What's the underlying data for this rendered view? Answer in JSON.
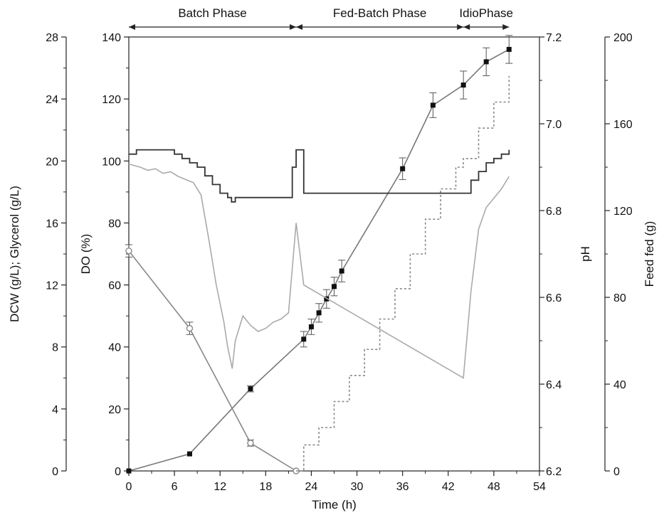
{
  "chart_data": {
    "type": "line",
    "xlabel": "Time (h)",
    "xlim": [
      0,
      54
    ],
    "xticks": [
      "0",
      "6",
      "12",
      "18",
      "24",
      "30",
      "36",
      "42",
      "48",
      "54"
    ],
    "grid": false,
    "axes": {
      "dcw": {
        "label": "DCW (g/L); Glycerol (g/L)",
        "lim": [
          0,
          28
        ],
        "ticks": [
          "0",
          "4",
          "8",
          "12",
          "16",
          "20",
          "24",
          "28"
        ]
      },
      "do": {
        "label": "DO (%)",
        "lim": [
          0,
          140
        ],
        "ticks": [
          "0",
          "20",
          "40",
          "60",
          "80",
          "100",
          "120",
          "140"
        ]
      },
      "ph": {
        "label": "pH",
        "lim": [
          6.2,
          7.2
        ],
        "ticks": [
          "6.2",
          "6.4",
          "6.6",
          "6.8",
          "7.0",
          "7.2"
        ]
      },
      "feed": {
        "label": "Feed fed (g)",
        "lim": [
          0,
          200
        ],
        "ticks": [
          "0",
          "40",
          "80",
          "120",
          "160",
          "200"
        ]
      }
    },
    "phases": [
      {
        "label": "Batch Phase",
        "start": 0,
        "end": 22
      },
      {
        "label": "Fed-Batch Phase",
        "start": 22,
        "end": 44
      },
      {
        "label": "IdioPhase",
        "start": 44,
        "end": 50
      }
    ],
    "series": [
      {
        "axis": "dcw",
        "style": "marker-filled-square",
        "color": "#777777",
        "marker": "#111111",
        "x": [
          0,
          8,
          16,
          23,
          24,
          25,
          26,
          27,
          28,
          36,
          40,
          44,
          47,
          50
        ],
        "y": [
          0,
          1.1,
          5.3,
          8.5,
          9.3,
          10.2,
          11.1,
          11.9,
          12.9,
          19.5,
          23.6,
          24.9,
          26.4,
          27.2
        ],
        "err": [
          0,
          0,
          0.2,
          0.5,
          0.5,
          0.6,
          0.6,
          0.6,
          0.7,
          0.7,
          0.8,
          0.9,
          0.9,
          0.9
        ]
      },
      {
        "axis": "dcw",
        "style": "marker-open-circle",
        "color": "#888888",
        "marker": "#888888",
        "x": [
          0,
          8,
          16,
          22
        ],
        "y": [
          14.2,
          9.2,
          1.8,
          0
        ],
        "err": [
          0.4,
          0.4,
          0.2,
          0
        ]
      },
      {
        "axis": "feed",
        "style": "dashed-step",
        "color": "#888888",
        "x": [
          22,
          23,
          25,
          27,
          29,
          31,
          33,
          35,
          37,
          39,
          41,
          43,
          44,
          46,
          48,
          50
        ],
        "y": [
          0,
          12,
          20,
          32,
          44,
          56,
          70,
          84,
          100,
          116,
          130,
          140,
          144,
          158,
          170,
          182
        ]
      },
      {
        "axis": "ph",
        "style": "step",
        "color": "#333333",
        "x": [
          0,
          1,
          5,
          6,
          7,
          8,
          9,
          10,
          11,
          12,
          13,
          13.5,
          14,
          15,
          16,
          17,
          18,
          19,
          20,
          21,
          21.5,
          22,
          23,
          44,
          45,
          46,
          47,
          48,
          49,
          50
        ],
        "y": [
          6.93,
          6.94,
          6.94,
          6.93,
          6.92,
          6.91,
          6.9,
          6.88,
          6.86,
          6.84,
          6.83,
          6.82,
          6.83,
          6.83,
          6.83,
          6.83,
          6.83,
          6.83,
          6.83,
          6.83,
          6.9,
          6.94,
          6.84,
          6.84,
          6.87,
          6.89,
          6.91,
          6.92,
          6.93,
          6.94
        ]
      },
      {
        "axis": "do",
        "style": "line",
        "color": "#aaaaaa",
        "x": [
          0,
          1.5,
          2.5,
          3.5,
          4.5,
          5.5,
          6.5,
          7.5,
          8.5,
          9.5,
          10.5,
          11.5,
          12.5,
          13,
          13.6,
          14,
          15,
          16,
          17,
          18,
          19,
          20,
          21,
          22,
          23,
          44,
          45,
          46,
          47,
          48,
          49,
          50
        ],
        "y": [
          99,
          98,
          97,
          97.5,
          96,
          96.5,
          95,
          94,
          93,
          89,
          75,
          60,
          48,
          40,
          33,
          42,
          50,
          47,
          45,
          46,
          48,
          49,
          51,
          80,
          60,
          30,
          58,
          78,
          85,
          88,
          91,
          95
        ]
      }
    ]
  }
}
